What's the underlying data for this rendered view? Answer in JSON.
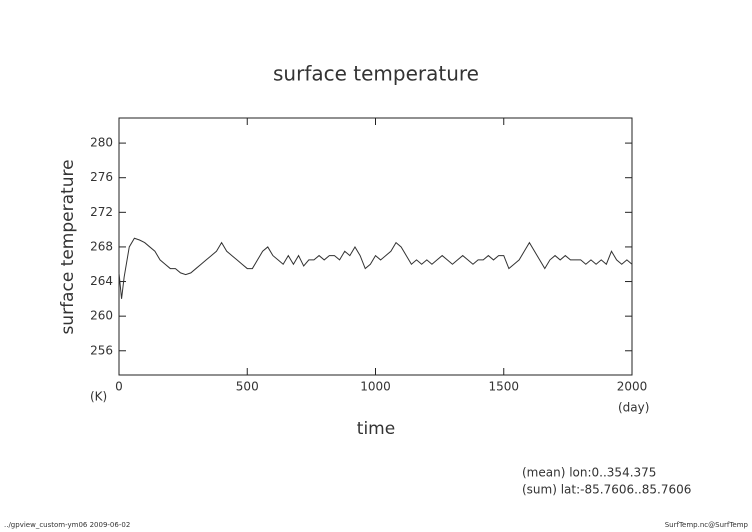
{
  "chart_data": {
    "type": "line",
    "title": "surface temperature",
    "y_label": "surface temperature",
    "x_label": "time",
    "y_unit": "(K)",
    "x_unit": "(day)",
    "annotations": [
      "(mean) lon:0..354.375",
      "(sum) lat:-85.7606..85.7606"
    ],
    "footer_left": "../gpview_custom-ym06  2009-06-02",
    "footer_right": "SurfTemp.nc@SurfTemp",
    "x": [
      0,
      10,
      20,
      40,
      60,
      80,
      100,
      120,
      140,
      160,
      180,
      200,
      220,
      240,
      260,
      280,
      300,
      320,
      340,
      360,
      380,
      400,
      420,
      440,
      460,
      480,
      500,
      520,
      540,
      560,
      580,
      600,
      620,
      640,
      660,
      680,
      700,
      720,
      740,
      760,
      780,
      800,
      820,
      840,
      860,
      880,
      900,
      920,
      940,
      960,
      980,
      1000,
      1020,
      1040,
      1060,
      1080,
      1100,
      1120,
      1140,
      1160,
      1180,
      1200,
      1220,
      1240,
      1260,
      1280,
      1300,
      1320,
      1340,
      1360,
      1380,
      1400,
      1420,
      1440,
      1460,
      1480,
      1500,
      1520,
      1540,
      1560,
      1580,
      1600,
      1620,
      1640,
      1660,
      1680,
      1700,
      1720,
      1740,
      1760,
      1780,
      1800,
      1820,
      1840,
      1860,
      1880,
      1900,
      1920,
      1940,
      1960,
      1980,
      2000
    ],
    "series": [
      {
        "name": "surface temperature",
        "color": "#333333",
        "values": [
          265,
          262,
          264.5,
          268,
          269,
          268.8,
          268.5,
          268,
          267.5,
          266.5,
          266,
          265.5,
          265.5,
          265,
          264.8,
          265,
          265.5,
          266,
          266.5,
          267,
          267.5,
          268.5,
          267.5,
          267,
          266.5,
          266,
          265.5,
          265.5,
          266.5,
          267.5,
          268,
          267,
          266.5,
          266,
          267,
          266,
          267,
          265.8,
          266.5,
          266.5,
          267,
          266.5,
          267,
          267,
          266.5,
          267.5,
          267,
          268,
          267,
          265.5,
          266,
          267,
          266.5,
          267,
          267.5,
          268.5,
          268,
          267,
          266,
          266.5,
          266,
          266.5,
          266,
          266.5,
          267,
          266.5,
          266,
          266.5,
          267,
          266.5,
          266,
          266.5,
          266.5,
          267,
          266.5,
          267,
          267,
          265.5,
          266,
          266.5,
          267.5,
          268.5,
          267.5,
          266.5,
          265.5,
          266.5,
          267,
          266.5,
          267,
          266.5,
          266.5,
          266.5,
          266,
          266.5,
          266,
          266.5,
          266,
          267.5,
          266.5,
          266,
          266.5,
          266
        ]
      }
    ],
    "xlim": [
      0,
      2000
    ],
    "ylim": [
      253.2,
      282.9
    ],
    "xticks": [
      0,
      500,
      1000,
      1500,
      2000
    ],
    "yticks": [
      256,
      260,
      264,
      268,
      272,
      276,
      280
    ]
  }
}
